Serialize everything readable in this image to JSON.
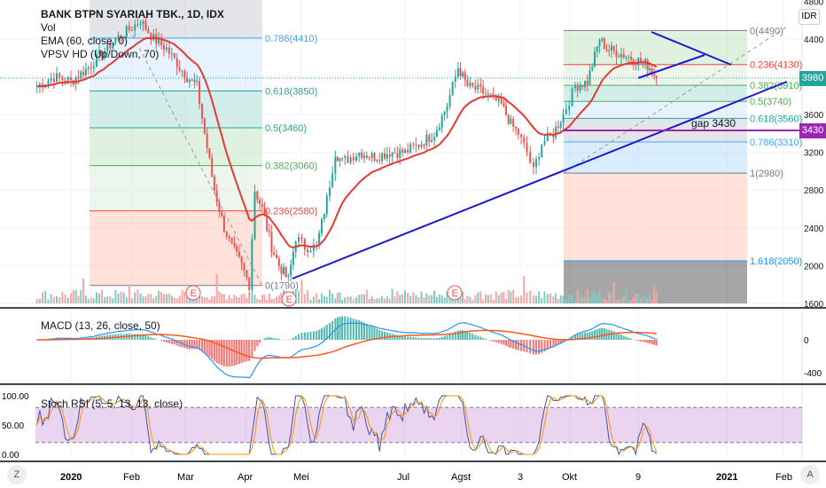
{
  "header": {
    "title": "BANK BTPN SYARIAH TBK., 1D, IDX",
    "indicators": [
      "Vol",
      "EMA (60, close, 0)",
      "VPSV HD (Up/Down, 70)"
    ]
  },
  "currency": "IDR",
  "price_tags": {
    "last": "3980",
    "last_color": "#26a69a",
    "gap": "3430",
    "gap_color": "#9c27b0"
  },
  "annotations": {
    "gap_text": "gap 3430",
    "earnings": [
      "E",
      "E",
      "E"
    ]
  },
  "fib_left": [
    {
      "label": "0.786(4410)",
      "price": 4410,
      "color": "#42a5f5"
    },
    {
      "label": "0.618(3850)",
      "price": 3850,
      "color": "#26a69a"
    },
    {
      "label": "0.5(3460)",
      "price": 3460,
      "color": "#26a69a"
    },
    {
      "label": "0.382(3060)",
      "price": 3060,
      "color": "#4caf50"
    },
    {
      "label": "0.236(2580)",
      "price": 2580,
      "color": "#f44336"
    },
    {
      "label": "0(1790)",
      "price": 1790,
      "color": "#787b86"
    }
  ],
  "fib_right": [
    {
      "label": "0(4490)",
      "price": 4490,
      "color": "#787b86"
    },
    {
      "label": "0.236(4130)",
      "price": 4130,
      "color": "#f44336"
    },
    {
      "label": "0.382(3910)",
      "price": 3910,
      "color": "#4caf50"
    },
    {
      "label": "0.5(3740)",
      "price": 3740,
      "color": "#4caf50"
    },
    {
      "label": "0.618(3560)",
      "price": 3560,
      "color": "#26a69a"
    },
    {
      "label": "0.786(3310)",
      "price": 3310,
      "color": "#42a5f5"
    },
    {
      "label": "1(2980)",
      "price": 2980,
      "color": "#787b86"
    },
    {
      "label": "1.618(2050)",
      "price": 2050,
      "color": "#2196f3"
    }
  ],
  "chart_data": {
    "type": "candlestick",
    "title": "BANK BTPN SYARIAH TBK., 1D, IDX",
    "y_ticks": [
      "4800",
      "4400",
      "3600",
      "3200",
      "2800",
      "2400",
      "2000",
      "1600"
    ],
    "ylim": [
      1600,
      4800
    ],
    "x_ticks": [
      "2020",
      "Feb",
      "Mar",
      "Apr",
      "Mei",
      "Jul",
      "Agst",
      "3",
      "Okt",
      "9",
      "2021",
      "Feb"
    ],
    "closes": [
      [
        "2019-12-14",
        3900
      ],
      [
        "2019-12-23",
        4000
      ],
      [
        "2020-01-01",
        3950
      ],
      [
        "2020-01-10",
        4100
      ],
      [
        "2020-01-24",
        4400
      ],
      [
        "2020-01-31",
        4500
      ],
      [
        "2020-02-06",
        4600
      ],
      [
        "2020-02-13",
        4400
      ],
      [
        "2020-02-20",
        4300
      ],
      [
        "2020-02-27",
        4100
      ],
      [
        "2020-03-02",
        4000
      ],
      [
        "2020-03-07",
        3900
      ],
      [
        "2020-03-11",
        3400
      ],
      [
        "2020-03-16",
        2800
      ],
      [
        "2020-03-21",
        2400
      ],
      [
        "2020-03-25",
        2200
      ],
      [
        "2020-03-30",
        2000
      ],
      [
        "2020-04-03",
        1800
      ],
      [
        "2020-04-06",
        2800
      ],
      [
        "2020-04-10",
        2600
      ],
      [
        "2020-04-15",
        2200
      ],
      [
        "2020-04-19",
        2000
      ],
      [
        "2020-04-24",
        1850
      ],
      [
        "2020-04-28",
        2300
      ],
      [
        "2020-05-03",
        2200
      ],
      [
        "2020-05-10",
        2200
      ],
      [
        "2020-05-16",
        2700
      ],
      [
        "2020-05-21",
        3200
      ],
      [
        "2020-05-25",
        3100
      ],
      [
        "2020-06-04",
        3200
      ],
      [
        "2020-06-13",
        3150
      ],
      [
        "2020-06-22",
        3200
      ],
      [
        "2020-07-01",
        3200
      ],
      [
        "2020-07-10",
        3300
      ],
      [
        "2020-07-17",
        3400
      ],
      [
        "2020-07-24",
        3700
      ],
      [
        "2020-07-30",
        4100
      ],
      [
        "2020-08-04",
        3900
      ],
      [
        "2020-08-11",
        3850
      ],
      [
        "2020-08-15",
        3800
      ],
      [
        "2020-08-22",
        3700
      ],
      [
        "2020-08-27",
        3500
      ],
      [
        "2020-08-31",
        3400
      ],
      [
        "2020-09-05",
        3200
      ],
      [
        "2020-09-09",
        3000
      ],
      [
        "2020-09-14",
        3300
      ],
      [
        "2020-09-21",
        3400
      ],
      [
        "2020-09-27",
        3600
      ],
      [
        "2020-10-04",
        3900
      ],
      [
        "2020-10-11",
        3950
      ],
      [
        "2020-10-18",
        4400
      ],
      [
        "2020-10-22",
        4300
      ],
      [
        "2020-10-29",
        4250
      ],
      [
        "2020-11-05",
        4200
      ],
      [
        "2020-11-12",
        4150
      ],
      [
        "2020-11-16",
        4100
      ],
      [
        "2020-11-20",
        3980
      ]
    ],
    "ema_period": 60,
    "colors": {
      "up": "#26a69a",
      "down": "#ef5350",
      "ema": "#e53935",
      "trendline": "#1a1acc",
      "gap_line": "#9c27b0"
    }
  },
  "macd": {
    "label": "MACD (13, 26, close, 50)",
    "ticks": [
      "0",
      "-400"
    ]
  },
  "stoch": {
    "label": "Stoch RSI (5, 5, 13, 13, close)",
    "ticks": [
      "100.00",
      "50.00",
      "0.00"
    ],
    "upper_band": 80,
    "lower_band": 20
  },
  "buttons": {
    "left": "Z",
    "right": "A"
  }
}
